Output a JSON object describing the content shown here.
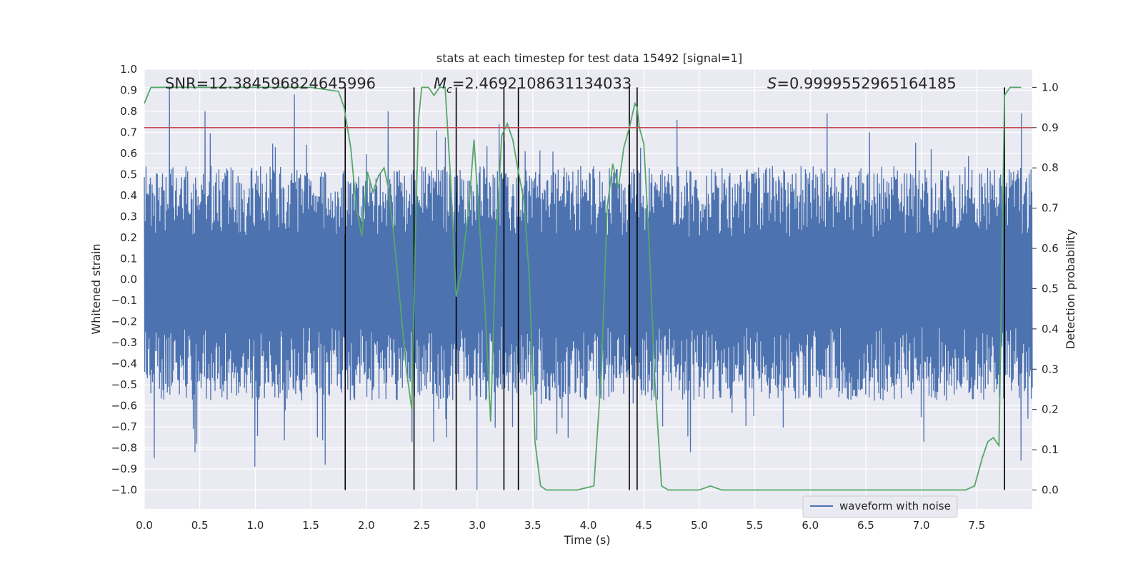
{
  "chart_data": {
    "type": "line",
    "title": "stats at each timestep for test data 15492 [signal=1]",
    "xlabel": "Time (s)",
    "ylabel": "Whitened strain",
    "y2label": "Detection probability",
    "xlim": [
      0.0,
      8.0
    ],
    "ylim": [
      -1.09,
      1.0
    ],
    "y2lim": [
      -0.047,
      1.045
    ],
    "x_ticks": [
      "0.0",
      "0.5",
      "1.0",
      "1.5",
      "2.0",
      "2.5",
      "3.0",
      "3.5",
      "4.0",
      "4.5",
      "5.0",
      "5.5",
      "6.0",
      "6.5",
      "7.0",
      "7.5"
    ],
    "y_ticks": [
      "1.0",
      "0.9",
      "0.8",
      "0.7",
      "0.6",
      "0.5",
      "0.4",
      "0.3",
      "0.2",
      "0.1",
      "0.0",
      "−0.1",
      "−0.2",
      "−0.3",
      "−0.4",
      "−0.5",
      "−0.6",
      "−0.7",
      "−0.8",
      "−0.9",
      "−1.0"
    ],
    "y2_ticks": [
      "1.0",
      "0.9",
      "0.8",
      "0.7",
      "0.6",
      "0.5",
      "0.4",
      "0.3",
      "0.2",
      "0.1",
      "0.0"
    ],
    "grid": true,
    "legend_placement": "lower center",
    "annotations": {
      "snr": "SNR=12.384596824645996",
      "mc_symbol": "M",
      "mc_sub": "c",
      "mc_value": "=2.4692108631134033",
      "s_symbol": "S",
      "s_value": "=0.9999552965164185"
    },
    "threshold_y2": 0.9,
    "event_lines_x": [
      1.81,
      2.43,
      2.81,
      3.24,
      3.37,
      4.37,
      4.44,
      7.75
    ],
    "series": [
      {
        "name": "waveform with noise",
        "axis": "left",
        "color": "#4c72b0",
        "x_range": [
          0.0,
          8.0
        ],
        "samples": 2048,
        "upper_envelope_typical": 0.45,
        "lower_envelope_typical": -0.48,
        "peak_points": [
          {
            "x": 0.23,
            "y": 0.92
          },
          {
            "x": 0.55,
            "y": 0.8
          },
          {
            "x": 1.35,
            "y": 0.88
          },
          {
            "x": 2.2,
            "y": 0.8
          },
          {
            "x": 3.2,
            "y": 0.74
          },
          {
            "x": 4.8,
            "y": 0.76
          },
          {
            "x": 6.15,
            "y": 0.79
          },
          {
            "x": 7.9,
            "y": 0.79
          }
        ],
        "trough_points": [
          {
            "x": 0.09,
            "y": -0.85
          },
          {
            "x": 0.46,
            "y": -0.82
          },
          {
            "x": 0.47,
            "y": -0.78
          },
          {
            "x": 1.0,
            "y": -0.89
          },
          {
            "x": 1.63,
            "y": -0.88
          },
          {
            "x": 3.0,
            "y": -1.0
          },
          {
            "x": 2.61,
            "y": -0.77
          },
          {
            "x": 4.92,
            "y": -0.82
          },
          {
            "x": 7.9,
            "y": -0.86
          }
        ]
      },
      {
        "name": "",
        "axis": "right",
        "color": "#55a868",
        "x": [
          0.0,
          0.06,
          0.2,
          0.5,
          1.0,
          1.5,
          1.75,
          1.8,
          1.86,
          1.91,
          1.96,
          2.01,
          2.06,
          2.11,
          2.16,
          2.2,
          2.26,
          2.31,
          2.36,
          2.41,
          2.44,
          2.47,
          2.5,
          2.56,
          2.61,
          2.66,
          2.71,
          2.76,
          2.81,
          2.86,
          2.93,
          2.97,
          3.02,
          3.07,
          3.12,
          3.17,
          3.22,
          3.27,
          3.32,
          3.37,
          3.42,
          3.47,
          3.52,
          3.57,
          3.62,
          3.67,
          3.72,
          3.8,
          3.9,
          4.05,
          4.12,
          4.17,
          4.22,
          4.27,
          4.32,
          4.37,
          4.42,
          4.44,
          4.46,
          4.5,
          4.55,
          4.6,
          4.66,
          4.72,
          4.8,
          4.9,
          5.0,
          5.1,
          5.2,
          5.3,
          5.4,
          5.5,
          5.7,
          6.0,
          6.5,
          7.0,
          7.2,
          7.4,
          7.48,
          7.55,
          7.6,
          7.65,
          7.7,
          7.75,
          7.8,
          7.85,
          7.9
        ],
        "y": [
          0.96,
          1.0,
          1.0,
          1.0,
          1.0,
          1.0,
          0.99,
          0.95,
          0.85,
          0.7,
          0.63,
          0.79,
          0.74,
          0.78,
          0.8,
          0.75,
          0.6,
          0.45,
          0.3,
          0.2,
          0.6,
          0.92,
          1.0,
          1.0,
          0.98,
          1.0,
          1.0,
          0.77,
          0.48,
          0.55,
          0.72,
          0.87,
          0.66,
          0.45,
          0.17,
          0.62,
          0.88,
          0.91,
          0.87,
          0.79,
          0.72,
          0.52,
          0.12,
          0.01,
          0.0,
          0.0,
          0.0,
          0.0,
          0.0,
          0.01,
          0.3,
          0.7,
          0.81,
          0.75,
          0.85,
          0.9,
          0.96,
          0.95,
          0.9,
          0.86,
          0.6,
          0.27,
          0.01,
          0.0,
          0.0,
          0.0,
          0.0,
          0.01,
          0.0,
          0.0,
          0.0,
          0.0,
          0.0,
          0.0,
          0.0,
          0.0,
          0.0,
          0.0,
          0.01,
          0.08,
          0.12,
          0.13,
          0.11,
          0.98,
          1.0,
          1.0,
          1.0
        ]
      },
      {
        "name": "",
        "axis": "right",
        "color": "#c44e52",
        "role": "threshold"
      }
    ]
  },
  "legend": {
    "label": "waveform with noise"
  },
  "colors": {
    "plot_bg": "#eaeaf2",
    "grid": "#ffffff",
    "wave": "#4c72b0",
    "prob": "#55a868",
    "threshold": "#c44e52",
    "event_line": "#000000"
  }
}
